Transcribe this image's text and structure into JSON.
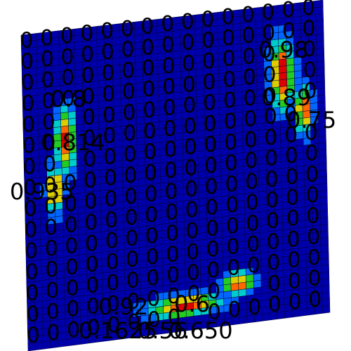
{
  "figure": {
    "colors": {
      "background": "#ffffff",
      "mesh_line": "#000033",
      "scale": [
        "#0000aa",
        "#0066ff",
        "#00cccc",
        "#22cc22",
        "#ddcc00",
        "#ff6600",
        "#dd0000"
      ]
    },
    "grid_labels_value": "0",
    "peak_labels": [
      {
        "text": "0.98"
      },
      {
        "text": "0.89"
      },
      {
        "text": "0.75"
      },
      {
        "text": "0.8"
      },
      {
        "text": "0.814"
      },
      {
        "text": "0.935"
      },
      {
        "text": "0.92"
      },
      {
        "text": "0.6"
      },
      {
        "text": "0.1625"
      },
      {
        "text": "0.56"
      },
      {
        "text": "0.650"
      }
    ]
  }
}
